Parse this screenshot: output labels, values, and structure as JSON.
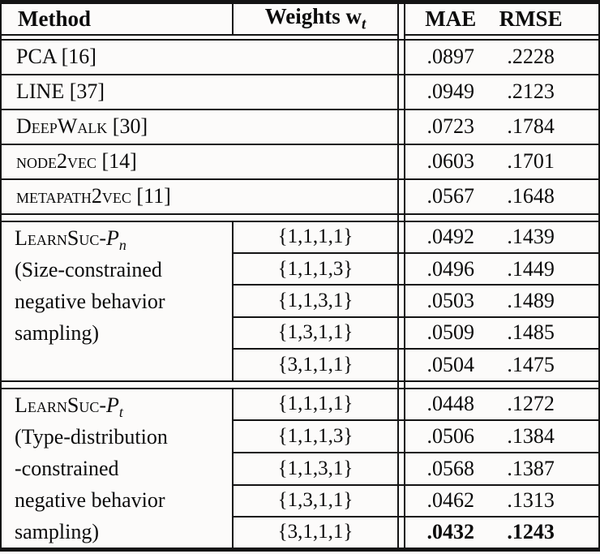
{
  "table": {
    "headers": {
      "method": "Method",
      "weights_label": "Weights w",
      "weights_sub": "t",
      "mae": "MAE",
      "rmse": "RMSE"
    },
    "baseline_rows": [
      {
        "method": "PCA [16]",
        "mae": ".0897",
        "rmse": ".2228"
      },
      {
        "method": "LINE [37]",
        "mae": ".0949",
        "rmse": ".2123"
      },
      {
        "method": "DeepWalk [30]",
        "mae": ".0723",
        "rmse": ".1784"
      },
      {
        "method": "node2vec [14]",
        "mae": ".0603",
        "rmse": ".1701"
      },
      {
        "method": "metapath2vec [11]",
        "mae": ".0567",
        "rmse": ".1648"
      }
    ],
    "blocks": [
      {
        "name_sc": "LearnSuc",
        "name_var": "-P",
        "name_sub": "n",
        "desc_lines": [
          "(Size-constrained",
          "negative behavior",
          "sampling)",
          ""
        ],
        "rows": [
          {
            "weights": "{1,1,1,1}",
            "mae": ".0492",
            "rmse": ".1439"
          },
          {
            "weights": "{1,1,1,3}",
            "mae": ".0496",
            "rmse": ".1449"
          },
          {
            "weights": "{1,1,3,1}",
            "mae": ".0503",
            "rmse": ".1489"
          },
          {
            "weights": "{1,3,1,1}",
            "mae": ".0509",
            "rmse": ".1485"
          },
          {
            "weights": "{3,1,1,1}",
            "mae": ".0504",
            "rmse": ".1475"
          }
        ]
      },
      {
        "name_sc": "LearnSuc",
        "name_var": "-P",
        "name_sub": "t",
        "desc_lines": [
          "(Type-distribution",
          "-constrained",
          "negative behavior",
          "sampling)"
        ],
        "rows": [
          {
            "weights": "{1,1,1,1}",
            "mae": ".0448",
            "rmse": ".1272"
          },
          {
            "weights": "{1,1,1,3}",
            "mae": ".0506",
            "rmse": ".1384"
          },
          {
            "weights": "{1,1,3,1}",
            "mae": ".0568",
            "rmse": ".1387"
          },
          {
            "weights": "{1,3,1,1}",
            "mae": ".0462",
            "rmse": ".1313"
          },
          {
            "weights": "{3,1,1,1}",
            "mae": ".0432",
            "rmse": ".1243"
          }
        ]
      }
    ]
  }
}
